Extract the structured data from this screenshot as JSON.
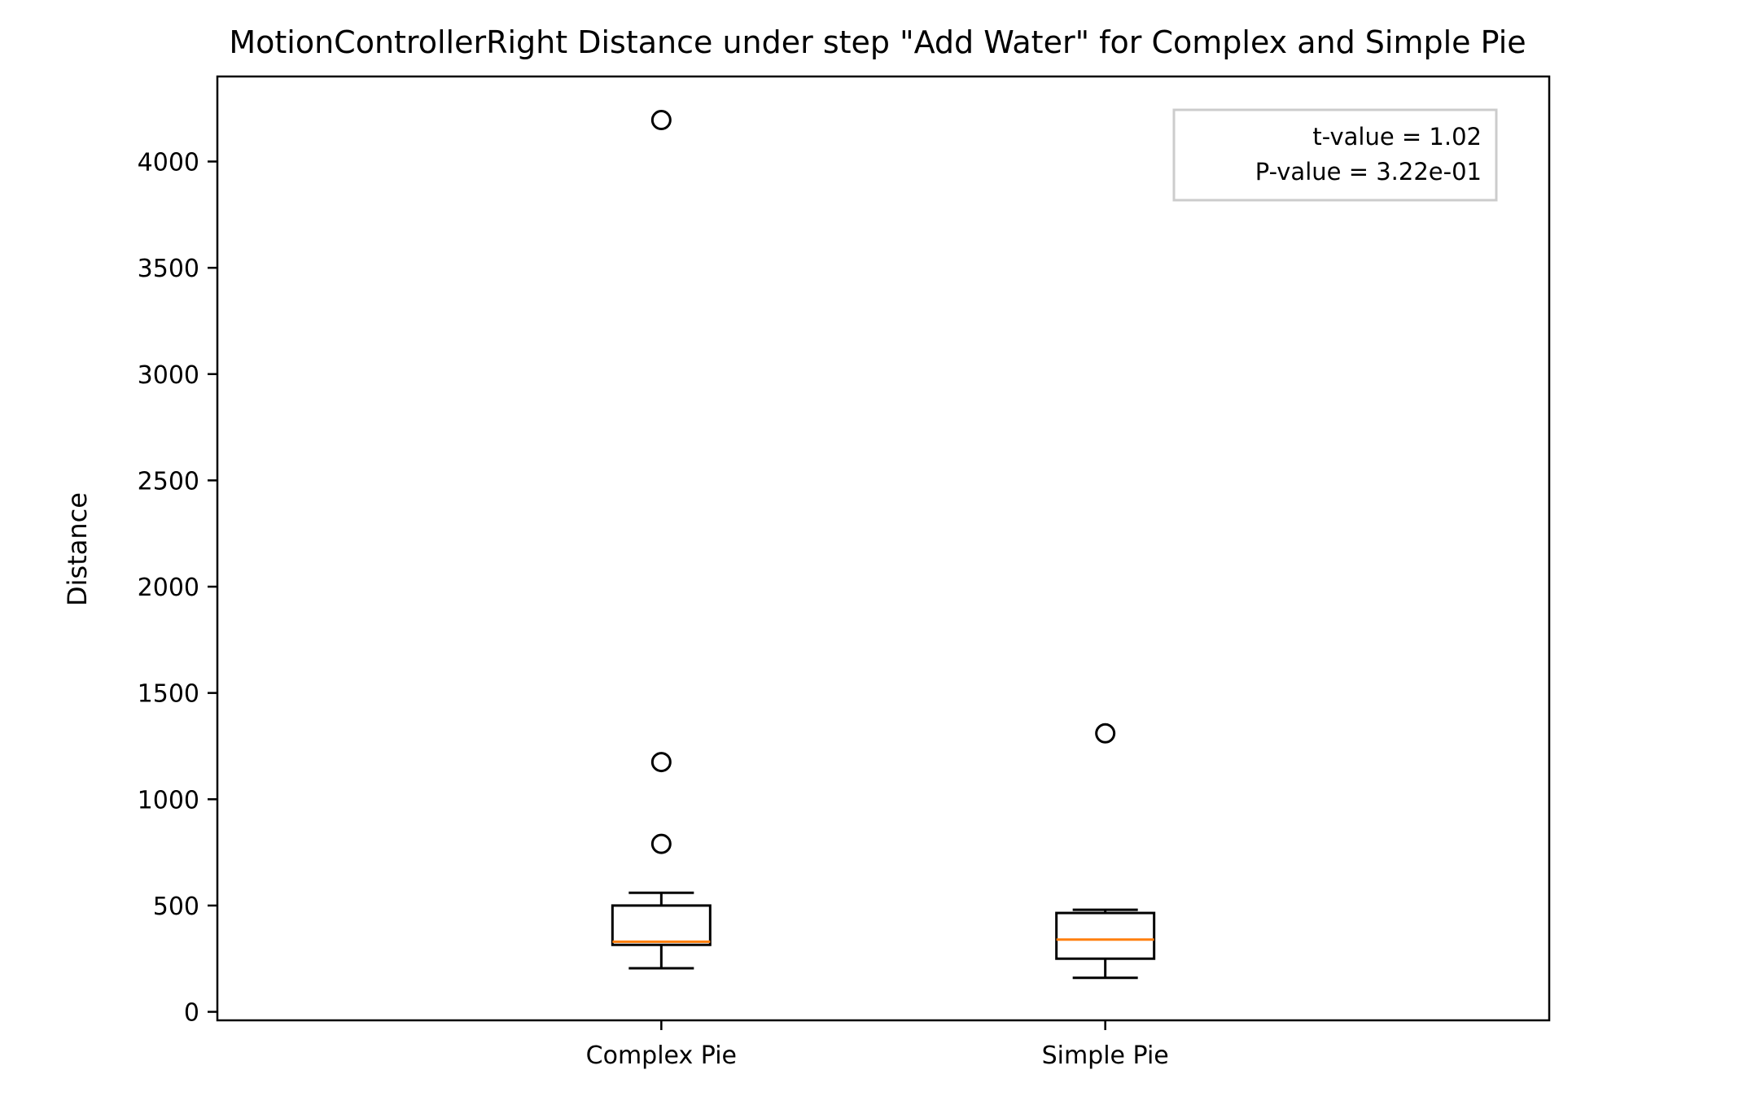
{
  "chart_data": {
    "type": "box",
    "title": "MotionControllerRight Distance under step \"Add Water\" for Complex and Simple Pie",
    "xlabel": "",
    "ylabel": "Distance",
    "ylim": [
      -40,
      4400
    ],
    "yticks": [
      0,
      500,
      1000,
      1500,
      2000,
      2500,
      3000,
      3500,
      4000
    ],
    "categories": [
      "Complex Pie",
      "Simple Pie"
    ],
    "boxes": [
      {
        "name": "Complex Pie",
        "whisker_low": 205,
        "q1": 315,
        "median": 330,
        "q3": 500,
        "whisker_high": 560,
        "outliers": [
          4195,
          1175,
          790
        ]
      },
      {
        "name": "Simple Pie",
        "whisker_low": 160,
        "q1": 250,
        "median": 340,
        "q3": 465,
        "whisker_high": 480,
        "outliers": [
          1310
        ]
      }
    ],
    "annotation": [
      "t-value = 1.02",
      "P-value = 3.22e-01"
    ],
    "annotation_position": "top-right",
    "grid": false,
    "colors": {
      "box": "#000000",
      "median": "#ff7f0e",
      "outlier": "#000000"
    }
  }
}
